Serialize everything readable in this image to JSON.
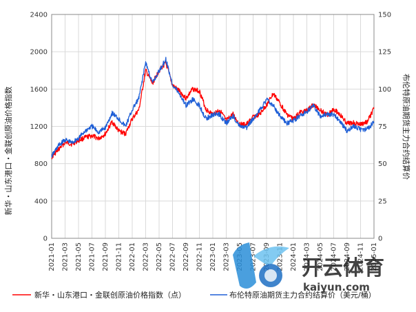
{
  "chart_data": {
    "type": "line",
    "title": "",
    "ylabel_left": "新华・山东港口・金联创原油价格指数",
    "ylabel_right": "布伦特原油期货主力合约结算价",
    "ylim_left": [
      0,
      2400
    ],
    "ylim_right": [
      0,
      150
    ],
    "yticks_left": [
      "0",
      "400",
      "800",
      "1200",
      "1600",
      "2000",
      "2400"
    ],
    "yticks_right": [
      "0",
      "25",
      "50",
      "75",
      "100",
      "125",
      "150"
    ],
    "xticks": [
      "2021-01",
      "2021-03",
      "2021-05",
      "2021-07",
      "2021-09",
      "2021-11",
      "2022-01",
      "2022-03",
      "2022-05",
      "2022-07",
      "2022-09",
      "2022-11",
      "2023-01",
      "2023-03",
      "2023-05",
      "2023-07",
      "2023-09",
      "2023-11",
      "2024-01",
      "2024-03",
      "2024-05",
      "2024-07",
      "2024-09",
      "2024-11",
      "2025-01"
    ],
    "grid": true,
    "legend_position": "bottom",
    "series": [
      {
        "name": "新华・山东港口・金联创原油价格指数（点）",
        "axis": "left",
        "color": "#ff0000",
        "x": [
          "2021-01",
          "2021-02",
          "2021-03",
          "2021-04",
          "2021-05",
          "2021-06",
          "2021-07",
          "2021-08",
          "2021-09",
          "2021-10",
          "2021-11",
          "2021-12",
          "2022-01",
          "2022-02",
          "2022-03",
          "2022-04",
          "2022-05",
          "2022-06",
          "2022-07",
          "2022-08",
          "2022-09",
          "2022-10",
          "2022-11",
          "2022-12",
          "2023-01",
          "2023-02",
          "2023-03",
          "2023-04",
          "2023-05",
          "2023-06",
          "2023-07",
          "2023-08",
          "2023-09",
          "2023-10",
          "2023-11",
          "2023-12",
          "2024-01",
          "2024-02",
          "2024-03",
          "2024-04",
          "2024-05",
          "2024-06",
          "2024-07",
          "2024-08",
          "2024-09",
          "2024-10",
          "2024-11",
          "2024-12",
          "2025-01"
        ],
        "values": [
          870,
          950,
          1030,
          1010,
          1050,
          1080,
          1100,
          1070,
          1120,
          1250,
          1150,
          1120,
          1280,
          1380,
          1800,
          1660,
          1800,
          1880,
          1640,
          1580,
          1500,
          1600,
          1580,
          1380,
          1330,
          1380,
          1260,
          1330,
          1220,
          1220,
          1300,
          1330,
          1430,
          1550,
          1450,
          1330,
          1280,
          1350,
          1370,
          1430,
          1380,
          1320,
          1390,
          1320,
          1230,
          1240,
          1220,
          1250,
          1390
        ]
      },
      {
        "name": "布伦特原油期货主力合约结算价（美元/桶）",
        "axis": "right",
        "color": "#1f5fd6",
        "x": [
          "2021-01",
          "2021-02",
          "2021-03",
          "2021-04",
          "2021-05",
          "2021-06",
          "2021-07",
          "2021-08",
          "2021-09",
          "2021-10",
          "2021-11",
          "2021-12",
          "2022-01",
          "2022-02",
          "2022-03",
          "2022-04",
          "2022-05",
          "2022-06",
          "2022-07",
          "2022-08",
          "2022-09",
          "2022-10",
          "2022-11",
          "2022-12",
          "2023-01",
          "2023-02",
          "2023-03",
          "2023-04",
          "2023-05",
          "2023-06",
          "2023-07",
          "2023-08",
          "2023-09",
          "2023-10",
          "2023-11",
          "2023-12",
          "2024-01",
          "2024-02",
          "2024-03",
          "2024-04",
          "2024-05",
          "2024-06",
          "2024-07",
          "2024-08",
          "2024-09",
          "2024-10",
          "2024-11",
          "2024-12",
          "2025-01"
        ],
        "values": [
          55,
          62,
          66,
          64,
          67,
          72,
          75,
          71,
          74,
          84,
          80,
          75,
          86,
          94,
          118,
          104,
          112,
          120,
          103,
          97,
          89,
          93,
          89,
          80,
          83,
          83,
          77,
          82,
          75,
          74,
          80,
          86,
          93,
          89,
          82,
          77,
          79,
          82,
          85,
          89,
          82,
          83,
          83,
          78,
          72,
          75,
          73,
          73,
          78
        ]
      }
    ],
    "legend": [
      {
        "label": "新华・山东港口・金联创原油价格指数（点）",
        "color": "#ff0000"
      },
      {
        "label": "布伦特原油期货主力合约结算价（美元/桶）",
        "color": "#1f5fd6"
      }
    ]
  },
  "watermark": {
    "text_cn": "开云体育",
    "text_en": "kaiyun.com"
  }
}
